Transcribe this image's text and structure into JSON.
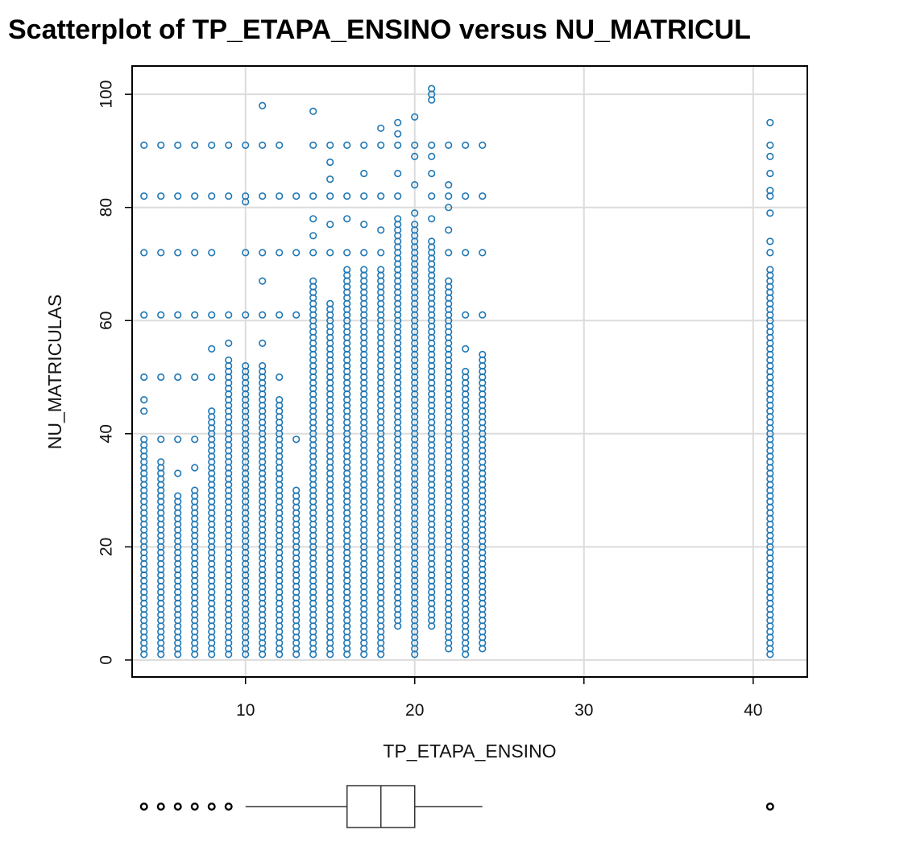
{
  "chart_data": {
    "type": "scatter",
    "title": "Scatterplot of TP_ETAPA_ENSINO versus NU_MATRICUL",
    "xlabel": "TP_ETAPA_ENSINO",
    "ylabel": "NU_MATRICULAS",
    "xlim": [
      3.3,
      43.2
    ],
    "ylim": [
      -3,
      105
    ],
    "x_ticks": [
      10,
      20,
      30,
      40
    ],
    "y_ticks": [
      0,
      20,
      40,
      60,
      80,
      100
    ],
    "grid": true,
    "marker": "open-circle",
    "colors": {
      "points": "#1f77b4",
      "grid": "#dcdcdc",
      "axis": "#000000"
    },
    "series": [
      {
        "points_by_x": [
          {
            "x": 4,
            "y_min": 1,
            "y_max": 39,
            "levels": [
              46,
              44,
              50,
              61,
              72,
              82,
              91
            ]
          },
          {
            "x": 5,
            "y_min": 1,
            "y_max": 35,
            "levels": [
              39,
              50,
              61,
              72,
              82,
              91
            ]
          },
          {
            "x": 6,
            "y_min": 1,
            "y_max": 29,
            "levels": [
              33,
              39,
              50,
              61,
              72,
              82,
              91
            ]
          },
          {
            "x": 7,
            "y_min": 1,
            "y_max": 30,
            "levels": [
              34,
              39,
              50,
              61,
              72,
              82,
              91
            ]
          },
          {
            "x": 8,
            "y_min": 1,
            "y_max": 44,
            "levels": [
              50,
              55,
              61,
              72,
              82,
              91
            ]
          },
          {
            "x": 9,
            "y_min": 1,
            "y_max": 52,
            "levels": [
              53,
              56,
              61,
              82,
              91
            ]
          },
          {
            "x": 10,
            "y_min": 1,
            "y_max": 51,
            "levels": [
              52,
              61,
              72,
              81,
              82,
              91
            ]
          },
          {
            "x": 11,
            "y_min": 1,
            "y_max": 52,
            "levels": [
              56,
              61,
              67,
              72,
              82,
              91,
              98
            ]
          },
          {
            "x": 12,
            "y_min": 1,
            "y_max": 46,
            "levels": [
              50,
              61,
              72,
              82,
              91
            ]
          },
          {
            "x": 13,
            "y_min": 1,
            "y_max": 30,
            "levels": [
              39,
              61,
              72,
              82
            ]
          },
          {
            "x": 14,
            "y_min": 1,
            "y_max": 67,
            "levels": [
              72,
              75,
              78,
              82,
              91,
              97
            ]
          },
          {
            "x": 15,
            "y_min": 1,
            "y_max": 63,
            "levels": [
              72,
              77,
              82,
              85,
              88,
              91
            ]
          },
          {
            "x": 16,
            "y_min": 1,
            "y_max": 69,
            "levels": [
              72,
              78,
              82,
              91
            ]
          },
          {
            "x": 17,
            "y_min": 1,
            "y_max": 69,
            "levels": [
              72,
              77,
              82,
              86,
              91
            ]
          },
          {
            "x": 18,
            "y_min": 1,
            "y_max": 69,
            "levels": [
              72,
              76,
              82,
              91,
              94
            ]
          },
          {
            "x": 19,
            "y_min": 6,
            "y_max": 78,
            "levels": [
              82,
              86,
              91,
              93,
              95
            ]
          },
          {
            "x": 20,
            "y_min": 1,
            "y_max": 77,
            "levels": [
              79,
              84,
              89,
              91,
              96
            ]
          },
          {
            "x": 21,
            "y_min": 6,
            "y_max": 74,
            "levels": [
              78,
              82,
              86,
              89,
              91,
              99,
              100,
              101
            ]
          },
          {
            "x": 22,
            "y_min": 2,
            "y_max": 67,
            "levels": [
              72,
              76,
              80,
              82,
              84,
              91
            ]
          },
          {
            "x": 23,
            "y_min": 1,
            "y_max": 51,
            "levels": [
              55,
              61,
              72,
              82,
              91
            ]
          },
          {
            "x": 24,
            "y_min": 2,
            "y_max": 54,
            "levels": [
              61,
              72,
              82,
              91
            ]
          },
          {
            "x": 41,
            "y_min": 1,
            "y_max": 69,
            "levels": [
              72,
              74,
              79,
              82,
              83,
              86,
              89,
              91,
              95
            ]
          }
        ]
      }
    ],
    "boxplot": {
      "min": 10,
      "q1": 16,
      "median": 18,
      "q3": 20,
      "max": 24,
      "outliers": [
        4,
        5,
        6,
        7,
        8,
        9,
        41
      ]
    }
  }
}
